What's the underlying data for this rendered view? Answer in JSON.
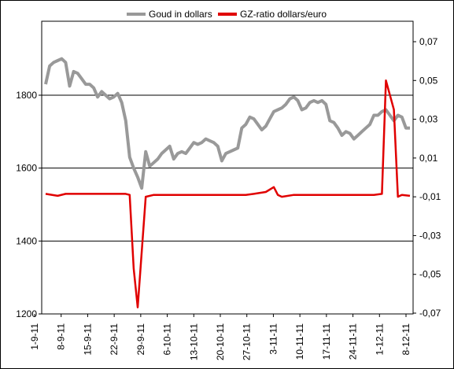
{
  "chart_data": {
    "type": "line",
    "legend_position": "top",
    "grid": "horizontal",
    "series": [
      {
        "name": "Goud in dollars",
        "color": "#999999",
        "axis": "left",
        "values": [
          [
            0,
            1830
          ],
          [
            1,
            1880
          ],
          [
            2,
            1890
          ],
          [
            3,
            1895
          ],
          [
            4,
            1900
          ],
          [
            5,
            1890
          ],
          [
            6,
            1825
          ],
          [
            7,
            1865
          ],
          [
            8,
            1860
          ],
          [
            9,
            1845
          ],
          [
            10,
            1830
          ],
          [
            11,
            1830
          ],
          [
            12,
            1820
          ],
          [
            13,
            1795
          ],
          [
            14,
            1810
          ],
          [
            15,
            1800
          ],
          [
            16,
            1790
          ],
          [
            17,
            1795
          ],
          [
            18,
            1805
          ],
          [
            19,
            1780
          ],
          [
            20,
            1730
          ],
          [
            21,
            1630
          ],
          [
            22,
            1600
          ],
          [
            23,
            1575
          ],
          [
            24,
            1545
          ],
          [
            25,
            1645
          ],
          [
            26,
            1605
          ],
          [
            27,
            1615
          ],
          [
            28,
            1625
          ],
          [
            29,
            1640
          ],
          [
            30,
            1650
          ],
          [
            31,
            1660
          ],
          [
            32,
            1625
          ],
          [
            33,
            1640
          ],
          [
            34,
            1645
          ],
          [
            35,
            1640
          ],
          [
            36,
            1655
          ],
          [
            37,
            1670
          ],
          [
            38,
            1665
          ],
          [
            39,
            1670
          ],
          [
            40,
            1680
          ],
          [
            41,
            1675
          ],
          [
            42,
            1670
          ],
          [
            43,
            1660
          ],
          [
            44,
            1620
          ],
          [
            45,
            1640
          ],
          [
            46,
            1645
          ],
          [
            47,
            1650
          ],
          [
            48,
            1655
          ],
          [
            49,
            1710
          ],
          [
            50,
            1720
          ],
          [
            51,
            1740
          ],
          [
            52,
            1735
          ],
          [
            53,
            1720
          ],
          [
            54,
            1705
          ],
          [
            55,
            1715
          ],
          [
            56,
            1735
          ],
          [
            57,
            1755
          ],
          [
            58,
            1760
          ],
          [
            59,
            1765
          ],
          [
            60,
            1775
          ],
          [
            61,
            1790
          ],
          [
            62,
            1795
          ],
          [
            63,
            1785
          ],
          [
            64,
            1760
          ],
          [
            65,
            1765
          ],
          [
            66,
            1780
          ],
          [
            67,
            1785
          ],
          [
            68,
            1780
          ],
          [
            69,
            1785
          ],
          [
            70,
            1775
          ],
          [
            71,
            1730
          ],
          [
            72,
            1725
          ],
          [
            73,
            1710
          ],
          [
            74,
            1690
          ],
          [
            75,
            1700
          ],
          [
            76,
            1695
          ],
          [
            77,
            1680
          ],
          [
            78,
            1690
          ],
          [
            79,
            1700
          ],
          [
            80,
            1710
          ],
          [
            81,
            1720
          ],
          [
            82,
            1745
          ],
          [
            83,
            1745
          ],
          [
            84,
            1755
          ],
          [
            85,
            1760
          ],
          [
            86,
            1745
          ],
          [
            87,
            1730
          ],
          [
            88,
            1745
          ],
          [
            89,
            1740
          ],
          [
            90,
            1710
          ],
          [
            91,
            1710
          ]
        ]
      },
      {
        "name": "GZ-ratio dollars/euro",
        "color": "#e00000",
        "axis": "right",
        "values": [
          [
            0,
            -0.0085
          ],
          [
            3,
            -0.0095
          ],
          [
            5,
            -0.0085
          ],
          [
            12,
            -0.0085
          ],
          [
            20,
            -0.0085
          ],
          [
            21,
            -0.009
          ],
          [
            22,
            -0.047
          ],
          [
            23,
            -0.067
          ],
          [
            25,
            -0.01
          ],
          [
            27,
            -0.009
          ],
          [
            30,
            -0.009
          ],
          [
            40,
            -0.009
          ],
          [
            50,
            -0.009
          ],
          [
            52,
            -0.0085
          ],
          [
            55,
            -0.0075
          ],
          [
            57,
            -0.005
          ],
          [
            58,
            -0.009
          ],
          [
            59,
            -0.01
          ],
          [
            62,
            -0.009
          ],
          [
            70,
            -0.009
          ],
          [
            80,
            -0.009
          ],
          [
            82,
            -0.009
          ],
          [
            84,
            -0.0085
          ],
          [
            85,
            0.05
          ],
          [
            87,
            0.035
          ],
          [
            88,
            -0.01
          ],
          [
            89,
            -0.009
          ],
          [
            91,
            -0.0095
          ]
        ]
      }
    ],
    "x": {
      "range": [
        0,
        91
      ],
      "tick_labels": [
        "1-9-11",
        "8-9-11",
        "15-9-11",
        "22-9-11",
        "29-9-11",
        "6-10-11",
        "13-10-11",
        "20-10-11",
        "27-10-11",
        "3-11-11",
        "10-11-11",
        "17-11-11",
        "24-11-11",
        "1-12-11",
        "8-12-11"
      ]
    },
    "y_left": {
      "range": [
        1200,
        1960
      ],
      "ticks": [
        1200,
        1400,
        1600,
        1800
      ],
      "tick_labels": [
        "1200",
        "1400",
        "1600",
        "1800"
      ]
    },
    "y_right": {
      "range": [
        -0.07,
        0.07
      ],
      "ticks": [
        -0.07,
        -0.05,
        -0.03,
        -0.01,
        0.01,
        0.03,
        0.05,
        0.07
      ],
      "tick_labels": [
        "-0,07",
        "-0,05",
        "-0,03",
        "-0,01",
        "0,01",
        "0,03",
        "0,05",
        "0,07"
      ]
    }
  }
}
